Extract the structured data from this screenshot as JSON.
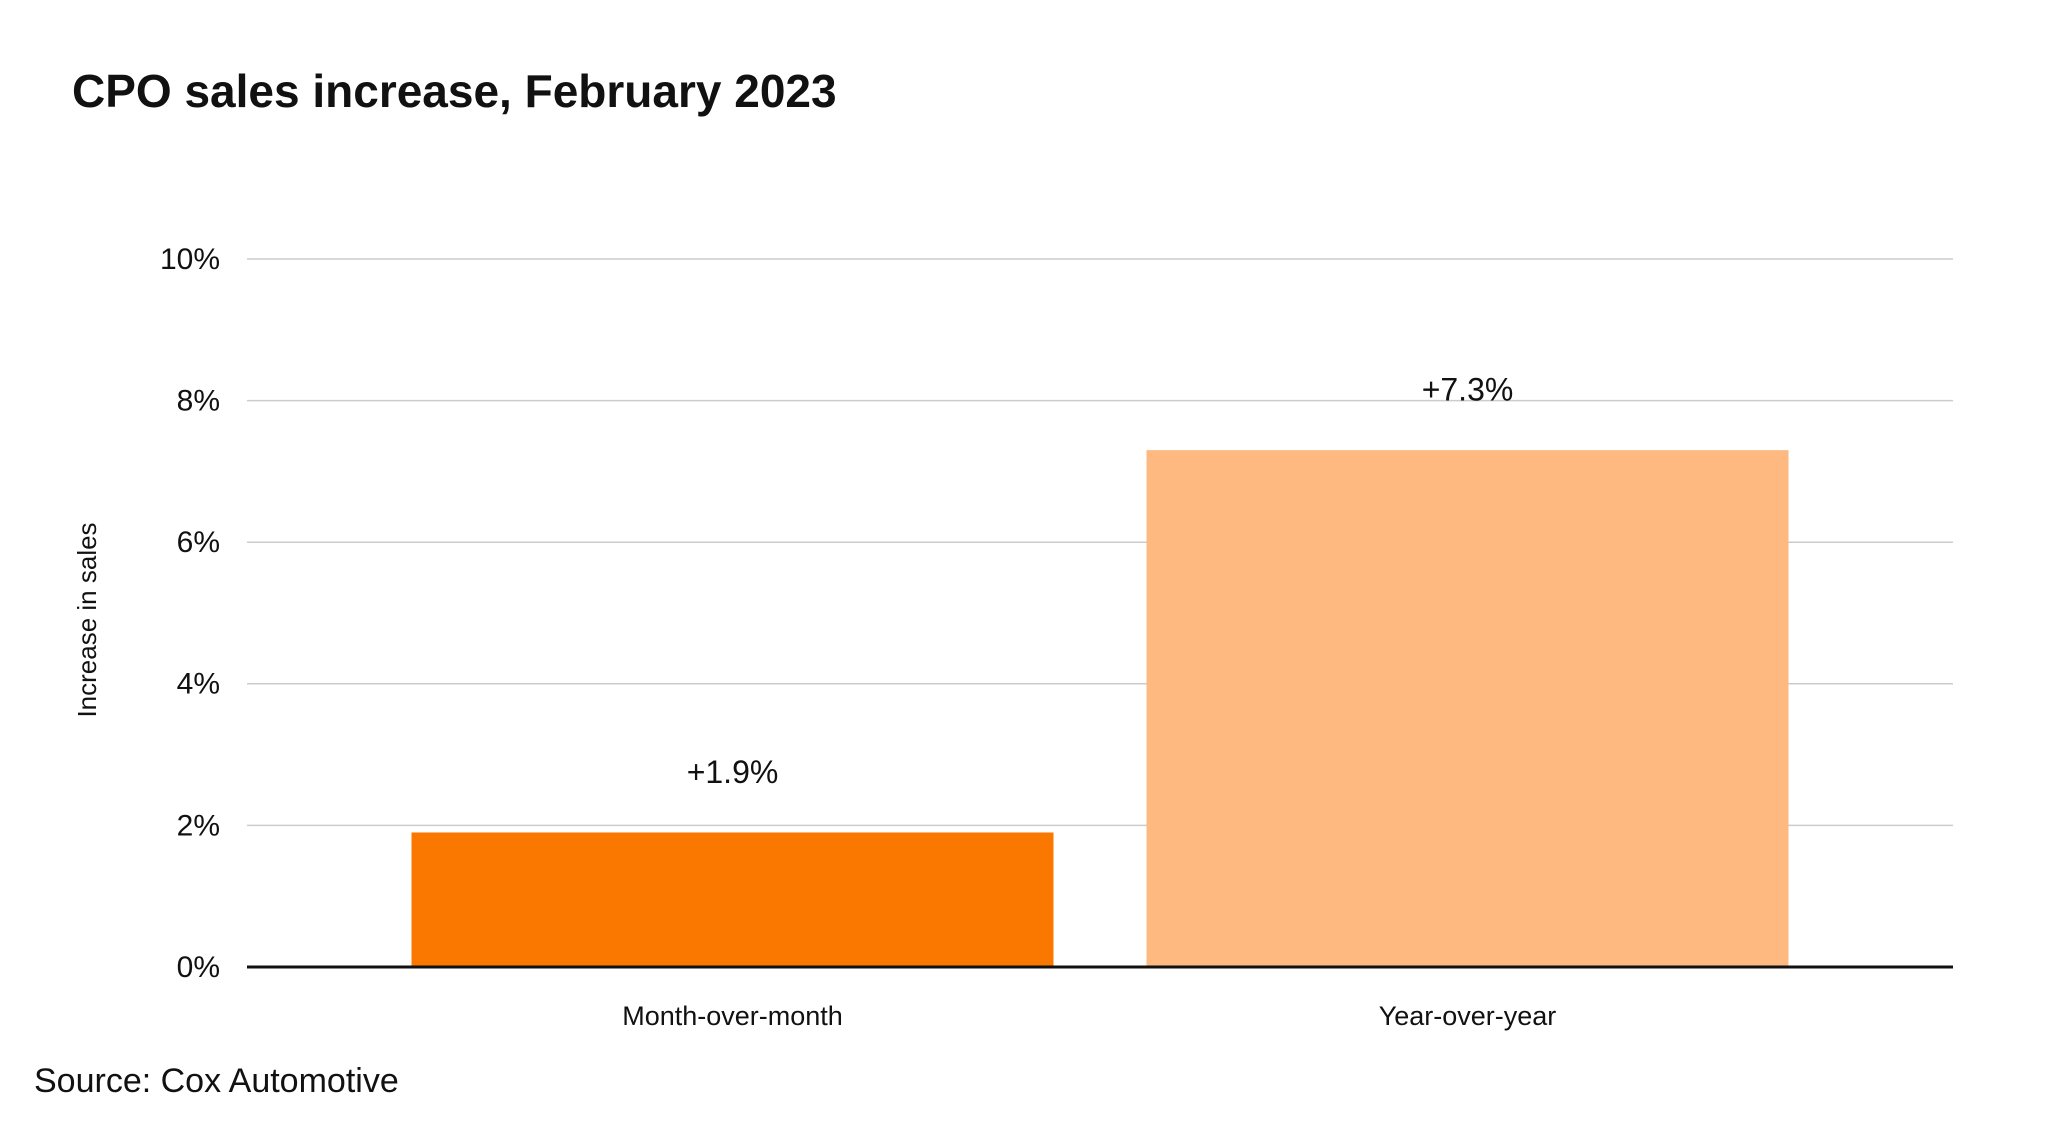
{
  "chart_data": {
    "type": "bar",
    "title": "CPO sales increase, February 2023",
    "y_label": "Increase in sales",
    "source": "Source: Cox Automotive",
    "categories": [
      "Month-over-month",
      "Year-over-year"
    ],
    "values": [
      1.9,
      7.3
    ],
    "value_labels": [
      "+1.9%",
      "+7.3%"
    ],
    "colors": [
      "#fb7800",
      "#fdb97f"
    ],
    "ylim": [
      0,
      10
    ],
    "yticks": [
      {
        "value": 0,
        "label": "0%"
      },
      {
        "value": 2,
        "label": "2%"
      },
      {
        "value": 4,
        "label": "4%"
      },
      {
        "value": 6,
        "label": "6%"
      },
      {
        "value": 8,
        "label": "8%"
      },
      {
        "value": 10,
        "label": "10%"
      }
    ],
    "grid": true
  }
}
